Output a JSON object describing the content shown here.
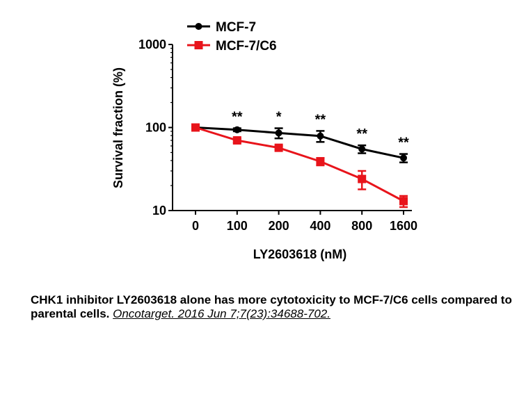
{
  "chart_data": {
    "type": "line",
    "categories": [
      "0",
      "100",
      "200",
      "400",
      "800",
      "1600"
    ],
    "xlabel": "LY2603618 (nM)",
    "ylabel": "Survival fraction (%)",
    "y_scale": "log",
    "ylim": [
      10,
      1000
    ],
    "y_ticks": [
      "10",
      "100",
      "1000"
    ],
    "legend_position": "top",
    "series": [
      {
        "name": "MCF-7",
        "color": "#000000",
        "marker": "circle",
        "values": [
          100,
          94,
          86,
          79,
          55,
          43
        ],
        "errors": [
          2,
          4,
          12,
          12,
          6,
          5
        ]
      },
      {
        "name": "MCF-7/C6",
        "color": "#e8141b",
        "marker": "square",
        "values": [
          100,
          70,
          57,
          39,
          24,
          13
        ],
        "errors": [
          2,
          4,
          3,
          4,
          6,
          2
        ]
      }
    ],
    "annotations": [
      "",
      "**",
      "*",
      "**",
      "**",
      "**"
    ]
  },
  "caption": {
    "text": "CHK1 inhibitor LY2603618 alone has more cytotoxicity to MCF-7/C6 cells compared to parental cells.",
    "citation": "Oncotarget. 2016 Jun 7;7(23):34688-702."
  }
}
